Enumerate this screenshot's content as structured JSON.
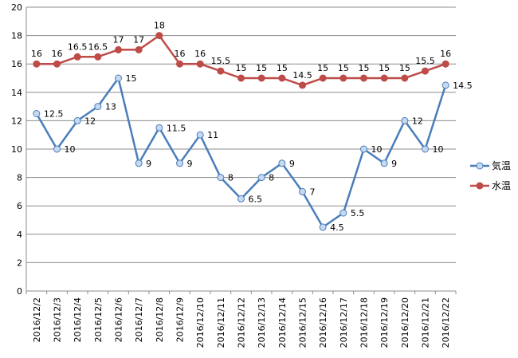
{
  "chart_data": {
    "type": "line",
    "title": "",
    "xlabel": "",
    "ylabel": "",
    "ylim": [
      0,
      20
    ],
    "y_ticks": [
      0,
      2,
      4,
      6,
      8,
      10,
      12,
      14,
      16,
      18,
      20
    ],
    "grid": true,
    "legend_position": "right",
    "categories": [
      "2016/12/2",
      "2016/12/3",
      "2016/12/4",
      "2016/12/5",
      "2016/12/6",
      "2016/12/7",
      "2016/12/8",
      "2016/12/9",
      "2016/12/10",
      "2016/12/11",
      "2016/12/12",
      "2016/12/13",
      "2016/12/14",
      "2016/12/15",
      "2016/12/16",
      "2016/12/17",
      "2016/12/18",
      "2016/12/19",
      "2016/12/20",
      "2016/12/21",
      "2016/12/22"
    ],
    "series": [
      {
        "name": "気温",
        "color": "#4a7ebb",
        "marker_fill": "#c6d9f1",
        "label_position": "right",
        "values": [
          12.5,
          10,
          12,
          13,
          15,
          9,
          11.5,
          9,
          11,
          8,
          6.5,
          8,
          9,
          7,
          4.5,
          5.5,
          10,
          9,
          12,
          10,
          14.5
        ]
      },
      {
        "name": "水温",
        "color": "#be4b48",
        "marker_fill": "#be4b48",
        "label_position": "above",
        "values": [
          16,
          16,
          16.5,
          16.5,
          17,
          17,
          18,
          16,
          16,
          15.5,
          15,
          15,
          15,
          14.5,
          15,
          15,
          15,
          15,
          15,
          15.5,
          16
        ]
      }
    ]
  }
}
